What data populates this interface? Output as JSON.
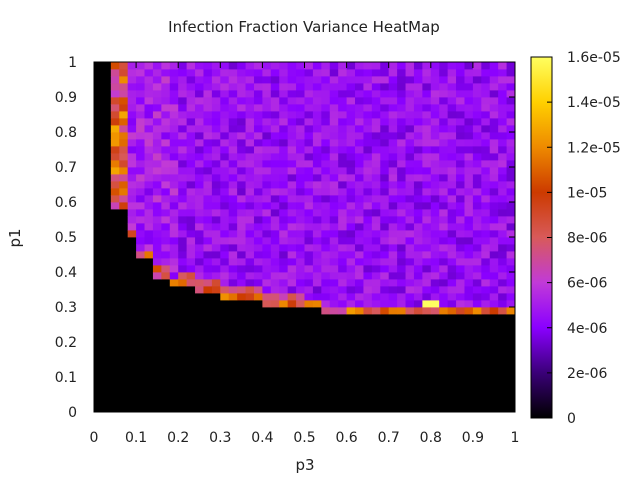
{
  "chart_data": {
    "type": "heatmap",
    "title": "Infection Fraction Variance HeatMap",
    "xlabel": "p3",
    "ylabel": "p1",
    "xlim": [
      0,
      1
    ],
    "ylim": [
      0,
      1
    ],
    "x_ticks": [
      "0",
      "0.1",
      "0.2",
      "0.3",
      "0.4",
      "0.5",
      "0.6",
      "0.7",
      "0.8",
      "0.9",
      "1"
    ],
    "y_ticks": [
      "0",
      "0.1",
      "0.2",
      "0.3",
      "0.4",
      "0.5",
      "0.6",
      "0.7",
      "0.8",
      "0.9",
      "1"
    ],
    "colorbar": {
      "range": [
        0,
        1.6e-05
      ],
      "ticks": [
        "0",
        "2e-06",
        "4e-06",
        "6e-06",
        "8e-06",
        "1e-05",
        "1.2e-05",
        "1.4e-05",
        "1.6e-05"
      ],
      "palette": [
        "#000000",
        "#3a0078",
        "#8a00ff",
        "#c13ad8",
        "#d85a5a",
        "#cc3a00",
        "#ee8a00",
        "#ffd000",
        "#ffff60"
      ]
    },
    "grid_resolution": {
      "x_step": 0.02,
      "y_step": 0.02
    },
    "typical_value": 4.6e-06,
    "regions": [
      {
        "description": "zero variance (black) for p1 below roughly 0.28 and small p3",
        "value": 0
      },
      {
        "description": "elevated band along threshold near p1 = 0.3",
        "value": 9e-06
      },
      {
        "description": "elevated strip near p3 = 0.06",
        "value": 1.1e-05
      },
      {
        "description": "peak near p3 = 0.8, p1 = 0.31",
        "value": 1.6e-05
      }
    ]
  }
}
